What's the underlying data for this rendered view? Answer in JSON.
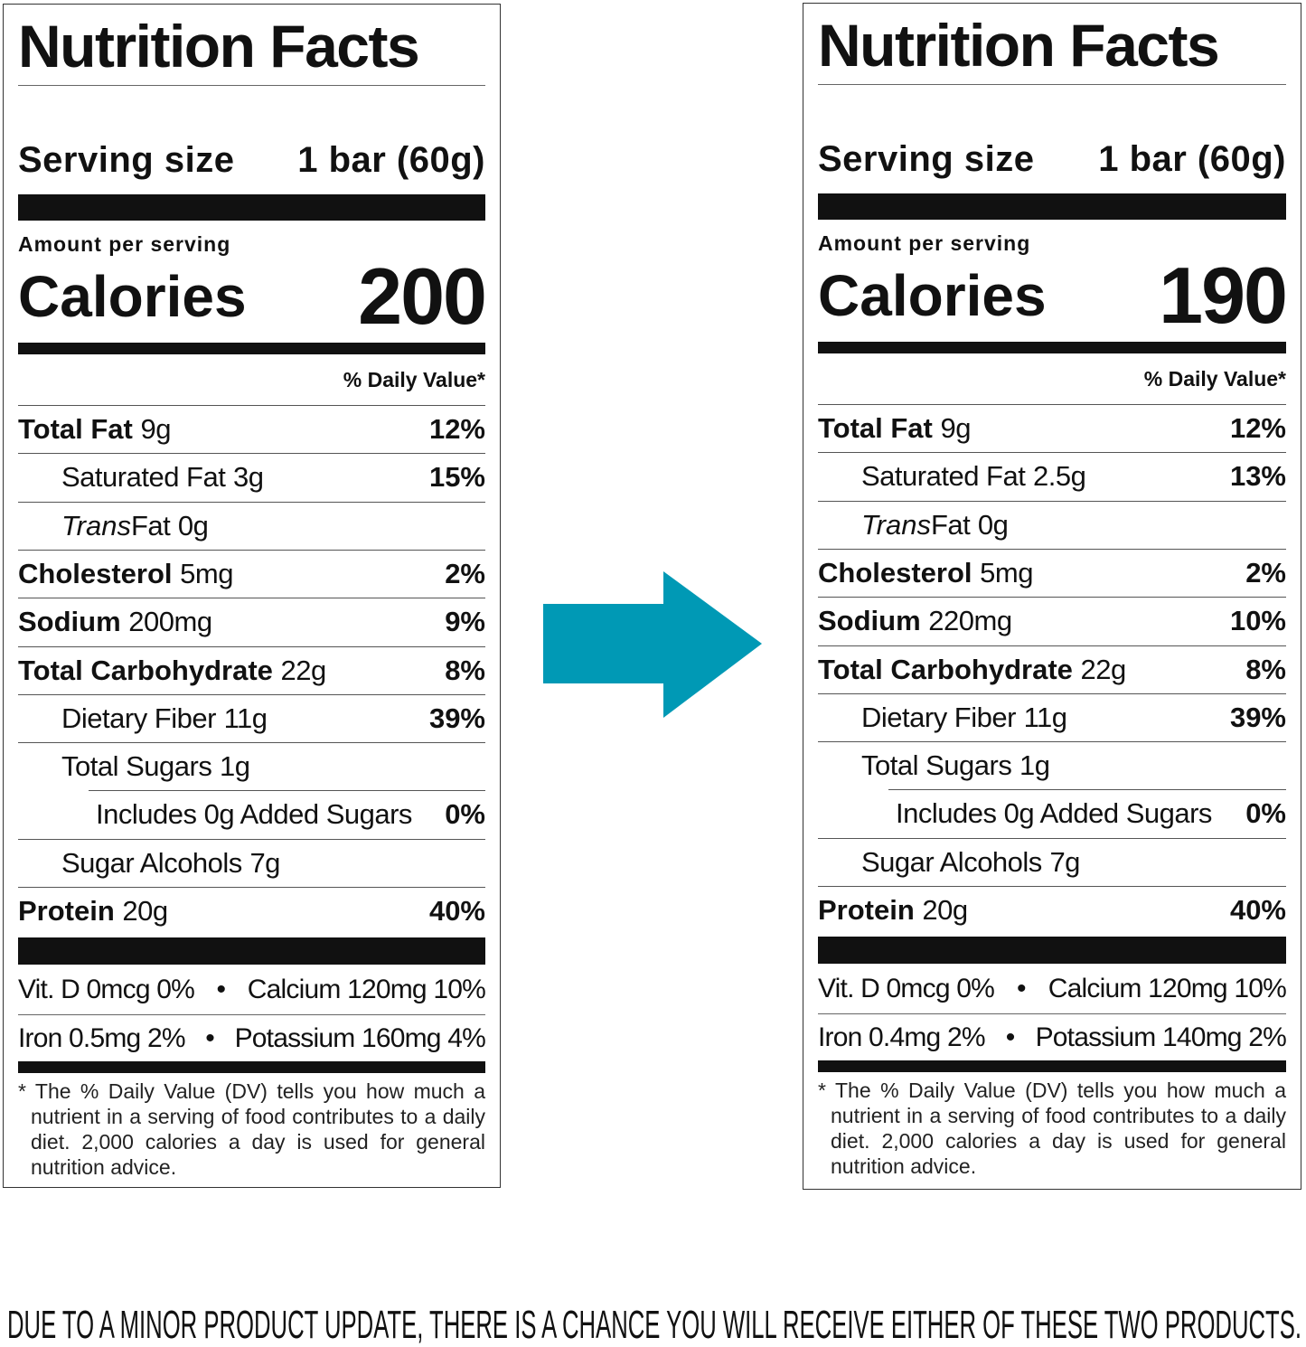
{
  "panels": [
    {
      "title": "Nutrition Facts",
      "serving_label": "Serving size",
      "serving_value": "1 bar (60g)",
      "amount_per_serving": "Amount per serving",
      "calories_label": "Calories",
      "calories_value": "200",
      "dv_header": "% Daily Value*",
      "nutrients": [
        {
          "name": "Total Fat",
          "amount": "9g",
          "dv": "12%",
          "bold": true,
          "indent": 0
        },
        {
          "name": "Saturated Fat",
          "amount": "3g",
          "dv": "15%",
          "bold": false,
          "indent": 1
        },
        {
          "name_italic": "Trans",
          "name": "Fat",
          "amount": "0g",
          "dv": "",
          "bold": false,
          "indent": 1
        },
        {
          "name": "Cholesterol",
          "amount": "5mg",
          "dv": "2%",
          "bold": true,
          "indent": 0
        },
        {
          "name": "Sodium",
          "amount": "200mg",
          "dv": "9%",
          "bold": true,
          "indent": 0
        },
        {
          "name": "Total Carbohydrate",
          "amount": "22g",
          "dv": "8%",
          "bold": true,
          "indent": 0
        },
        {
          "name": "Dietary Fiber",
          "amount": "11g",
          "dv": "39%",
          "bold": false,
          "indent": 1
        },
        {
          "name": "Total Sugars",
          "amount": "1g",
          "dv": "",
          "bold": false,
          "indent": 1
        },
        {
          "name": "Includes 0g Added Sugars",
          "amount": "",
          "dv": "0%",
          "bold": false,
          "indent": 2
        },
        {
          "name": "Sugar Alcohols",
          "amount": "7g",
          "dv": "",
          "bold": false,
          "indent": 1
        },
        {
          "name": "Protein",
          "amount": "20g",
          "dv": "40%",
          "bold": true,
          "indent": 0
        }
      ],
      "vitamins": [
        [
          "Vit. D 0mcg 0%",
          "Calcium 120mg 10%"
        ],
        [
          "Iron 0.5mg 2%",
          "Potassium 160mg 4%"
        ]
      ],
      "footnote": "* The % Daily Value (DV) tells you how much a nutrient in a serving of food contributes to a daily diet. 2,000 calories a day is used for general nutrition advice."
    },
    {
      "title": "Nutrition Facts",
      "serving_label": "Serving size",
      "serving_value": "1 bar (60g)",
      "amount_per_serving": "Amount per serving",
      "calories_label": "Calories",
      "calories_value": "190",
      "dv_header": "% Daily Value*",
      "nutrients": [
        {
          "name": "Total Fat",
          "amount": "9g",
          "dv": "12%",
          "bold": true,
          "indent": 0
        },
        {
          "name": "Saturated Fat",
          "amount": "2.5g",
          "dv": "13%",
          "bold": false,
          "indent": 1
        },
        {
          "name_italic": "Trans",
          "name": "Fat",
          "amount": "0g",
          "dv": "",
          "bold": false,
          "indent": 1
        },
        {
          "name": "Cholesterol",
          "amount": "5mg",
          "dv": "2%",
          "bold": true,
          "indent": 0
        },
        {
          "name": "Sodium",
          "amount": "220mg",
          "dv": "10%",
          "bold": true,
          "indent": 0
        },
        {
          "name": "Total Carbohydrate",
          "amount": "22g",
          "dv": "8%",
          "bold": true,
          "indent": 0
        },
        {
          "name": "Dietary Fiber",
          "amount": "11g",
          "dv": "39%",
          "bold": false,
          "indent": 1
        },
        {
          "name": "Total Sugars",
          "amount": "1g",
          "dv": "",
          "bold": false,
          "indent": 1
        },
        {
          "name": "Includes 0g Added Sugars",
          "amount": "",
          "dv": "0%",
          "bold": false,
          "indent": 2
        },
        {
          "name": "Sugar Alcohols",
          "amount": "7g",
          "dv": "",
          "bold": false,
          "indent": 1
        },
        {
          "name": "Protein",
          "amount": "20g",
          "dv": "40%",
          "bold": true,
          "indent": 0
        }
      ],
      "vitamins": [
        [
          "Vit. D 0mcg 0%",
          "Calcium 120mg 10%"
        ],
        [
          "Iron 0.4mg 2%",
          "Potassium 140mg 2%"
        ]
      ],
      "footnote": "* The % Daily Value (DV) tells you how much a nutrient in a serving of food contributes to a daily diet. 2,000 calories a day is used for general nutrition advice."
    }
  ],
  "arrow": {
    "icon": "arrow-right-icon",
    "color": "#0099B5"
  },
  "notice": "DUE TO A MINOR PRODUCT UPDATE, THERE IS A CHANCE YOU WILL RECEIVE EITHER OF THESE TWO PRODUCTS."
}
